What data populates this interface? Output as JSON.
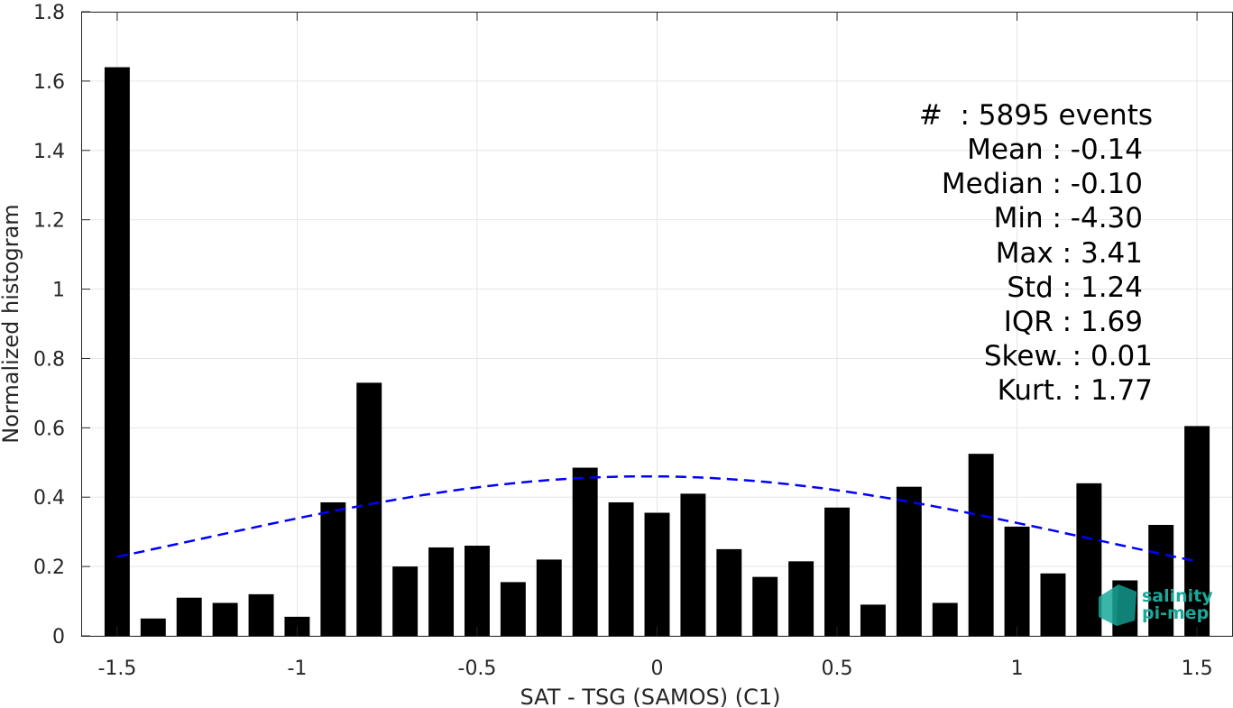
{
  "chart_data": {
    "type": "bar",
    "xlabel": "SAT - TSG (SAMOS) (C1)",
    "ylabel": "Normalized histogram",
    "xlim": [
      -1.6,
      1.6
    ],
    "ylim": [
      0,
      1.8
    ],
    "grid": true,
    "x_ticks": [
      {
        "value": -1.5,
        "label": "-1.5"
      },
      {
        "value": -1.0,
        "label": "-1"
      },
      {
        "value": -0.5,
        "label": "-0.5"
      },
      {
        "value": 0.0,
        "label": "0"
      },
      {
        "value": 0.5,
        "label": "0.5"
      },
      {
        "value": 1.0,
        "label": "1"
      },
      {
        "value": 1.5,
        "label": "1.5"
      }
    ],
    "y_ticks": [
      {
        "value": 0,
        "label": "0"
      },
      {
        "value": 0.2,
        "label": "0.2"
      },
      {
        "value": 0.4,
        "label": "0.4"
      },
      {
        "value": 0.6,
        "label": "0.6"
      },
      {
        "value": 0.8,
        "label": "0.8"
      },
      {
        "value": 1.0,
        "label": "1"
      },
      {
        "value": 1.2,
        "label": "1.2"
      },
      {
        "value": 1.4,
        "label": "1.4"
      },
      {
        "value": 1.6,
        "label": "1.6"
      },
      {
        "value": 1.8,
        "label": "1.8"
      }
    ],
    "bar_width": 0.07,
    "bar_color": "#000000",
    "bins": [
      {
        "x": -1.5,
        "value": 1.64
      },
      {
        "x": -1.4,
        "value": 0.05
      },
      {
        "x": -1.3,
        "value": 0.11
      },
      {
        "x": -1.2,
        "value": 0.095
      },
      {
        "x": -1.1,
        "value": 0.12
      },
      {
        "x": -1.0,
        "value": 0.055
      },
      {
        "x": -0.9,
        "value": 0.385
      },
      {
        "x": -0.8,
        "value": 0.73
      },
      {
        "x": -0.7,
        "value": 0.2
      },
      {
        "x": -0.6,
        "value": 0.255
      },
      {
        "x": -0.5,
        "value": 0.26
      },
      {
        "x": -0.4,
        "value": 0.155
      },
      {
        "x": -0.3,
        "value": 0.22
      },
      {
        "x": -0.2,
        "value": 0.485
      },
      {
        "x": -0.1,
        "value": 0.385
      },
      {
        "x": 0.0,
        "value": 0.355
      },
      {
        "x": 0.1,
        "value": 0.41
      },
      {
        "x": 0.2,
        "value": 0.25
      },
      {
        "x": 0.3,
        "value": 0.17
      },
      {
        "x": 0.4,
        "value": 0.215
      },
      {
        "x": 0.5,
        "value": 0.37
      },
      {
        "x": 0.6,
        "value": 0.09
      },
      {
        "x": 0.7,
        "value": 0.43
      },
      {
        "x": 0.8,
        "value": 0.095
      },
      {
        "x": 0.9,
        "value": 0.525
      },
      {
        "x": 1.0,
        "value": 0.315
      },
      {
        "x": 1.1,
        "value": 0.18
      },
      {
        "x": 1.2,
        "value": 0.44
      },
      {
        "x": 1.3,
        "value": 0.16
      },
      {
        "x": 1.4,
        "value": 0.32
      },
      {
        "x": 1.5,
        "value": 0.605
      }
    ],
    "fit_curve": {
      "style": "dashed",
      "color": "#0000ff",
      "mean": -0.03,
      "std": 1.24,
      "peak": 0.46,
      "x_range": [
        -1.5,
        1.5
      ]
    }
  },
  "stats": {
    "line1": "#  : 5895 events",
    "line2": "Mean : -0.14",
    "line3": "Median : -0.10",
    "line4": "Min : -4.30",
    "line5": "Max : 3.41",
    "line6": "Std : 1.24",
    "line7": "IQR : 1.69",
    "line8": "Skew. : 0.01",
    "line9": "Kurt. : 1.77"
  },
  "logo": {
    "line1": "salinity",
    "line2": "pi-mep",
    "color": "#1aa89a"
  }
}
